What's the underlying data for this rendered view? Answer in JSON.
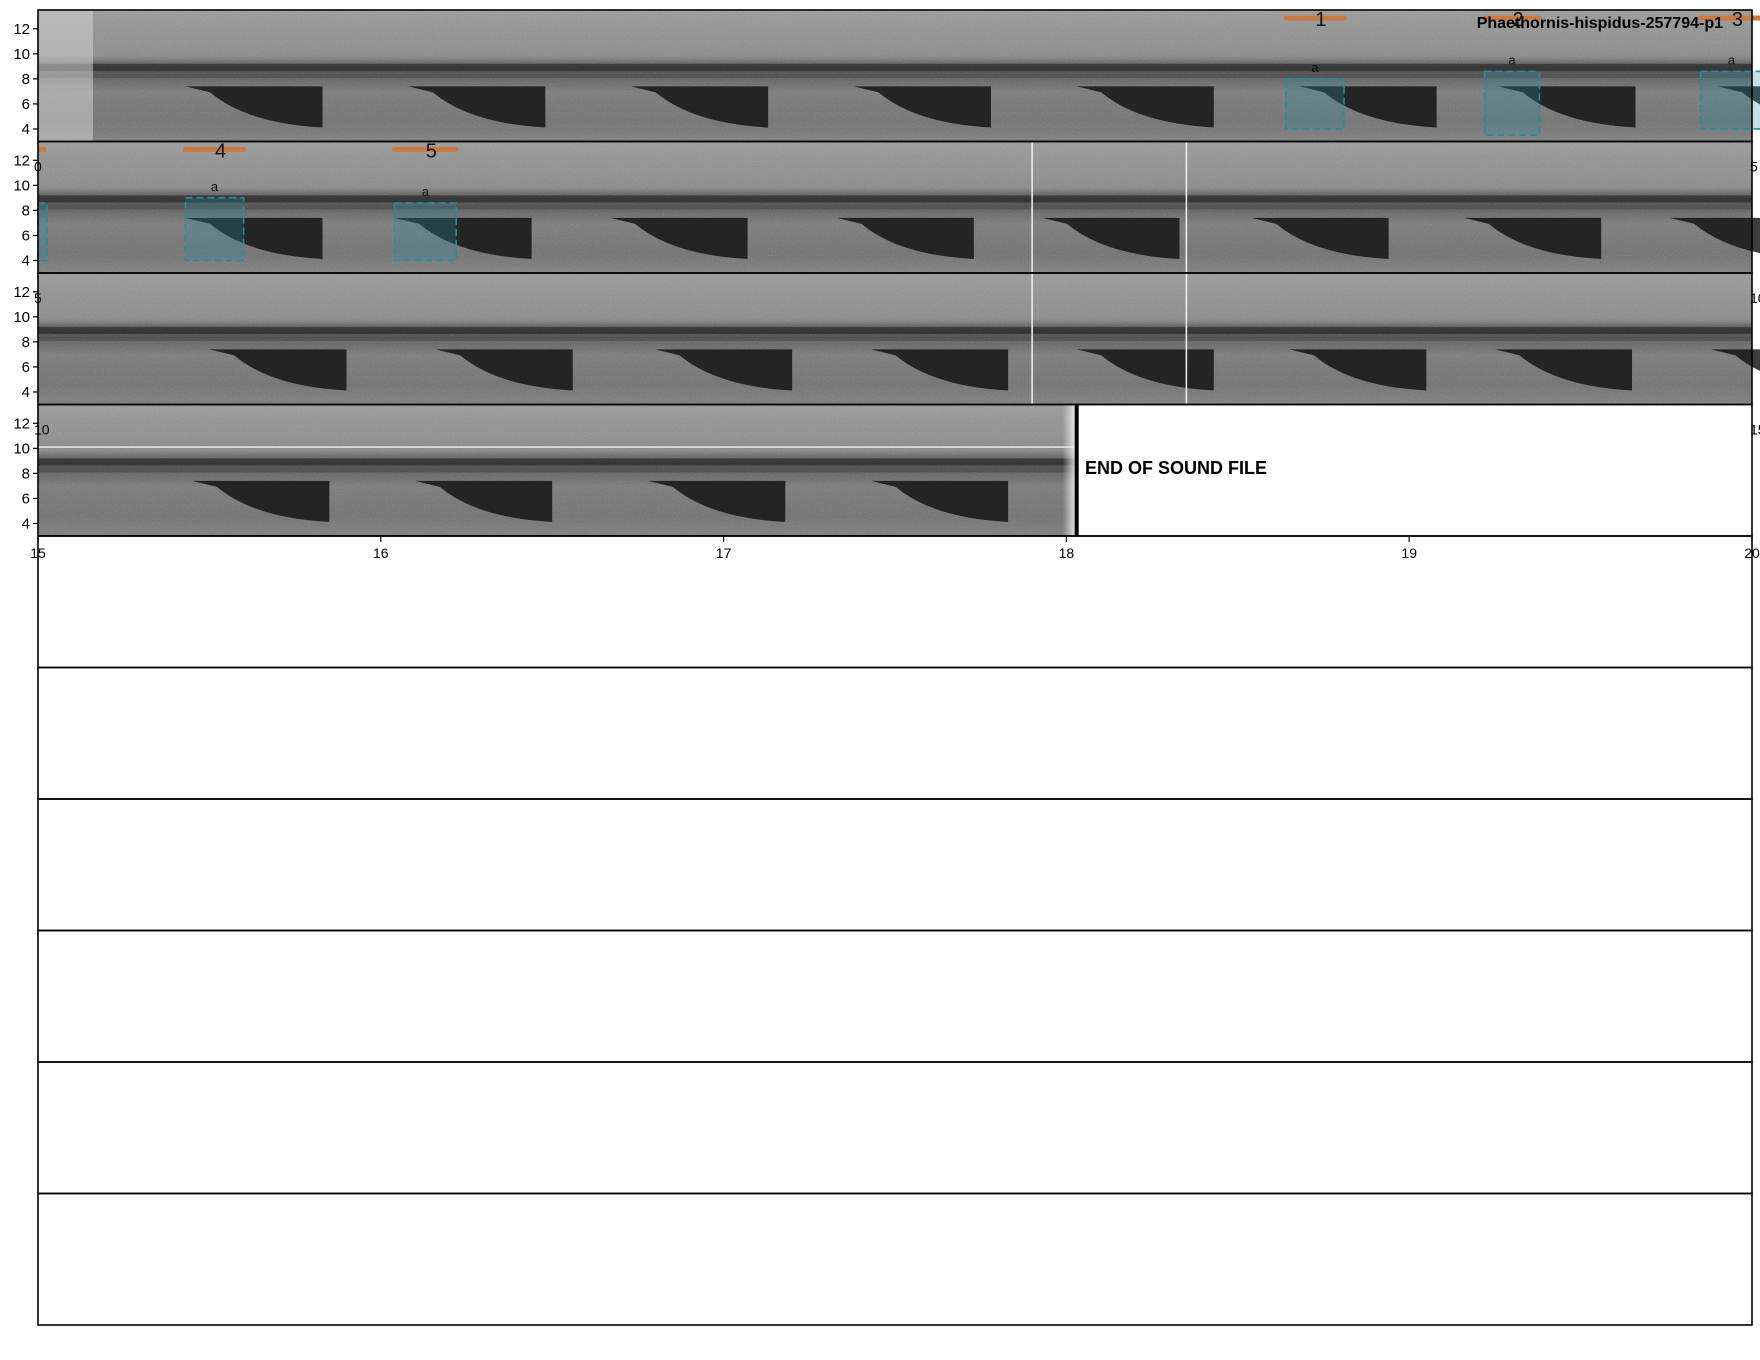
{
  "chart_data": {
    "type": "spectrogram",
    "title": "Phaethornis-hispidus-257794-p1",
    "end_label": "END OF SOUND FILE",
    "y_ticks": [
      4,
      6,
      8,
      10,
      12
    ],
    "ylim": [
      3,
      13.5
    ],
    "rows_total": 10,
    "rows_with_audio": 4,
    "seconds_per_row": 5,
    "end_of_file_time": 18.03,
    "bottom_x_ticks": [
      "15",
      "16",
      "17",
      "18",
      "19",
      "20"
    ],
    "row_tick_labels": [
      {
        "row": 1,
        "left": "0",
        "right": "5"
      },
      {
        "row": 2,
        "left": "5",
        "right": "10"
      },
      {
        "row": 3,
        "left": "10",
        "right": "15"
      }
    ],
    "segment_boundaries": [
      7.9,
      8.35,
      12.9,
      13.35
    ],
    "calls": [
      {
        "start": 0.43,
        "end": 0.83,
        "row": 0
      },
      {
        "start": 1.08,
        "end": 1.48,
        "row": 0
      },
      {
        "start": 1.73,
        "end": 2.13,
        "row": 0
      },
      {
        "start": 2.38,
        "end": 2.78,
        "row": 0
      },
      {
        "start": 3.03,
        "end": 3.43,
        "row": 0
      },
      {
        "start": 3.68,
        "end": 4.08,
        "row": 0
      },
      {
        "start": 4.26,
        "end": 4.66,
        "row": 0
      },
      {
        "start": 4.9,
        "end": 5.3,
        "row": 0
      },
      {
        "start": 5.43,
        "end": 5.83,
        "row": 1
      },
      {
        "start": 6.04,
        "end": 6.44,
        "row": 1
      },
      {
        "start": 6.67,
        "end": 7.07,
        "row": 1
      },
      {
        "start": 7.33,
        "end": 7.73,
        "row": 1
      },
      {
        "start": 7.93,
        "end": 8.33,
        "row": 1
      },
      {
        "start": 8.54,
        "end": 8.94,
        "row": 1
      },
      {
        "start": 9.16,
        "end": 9.56,
        "row": 1
      },
      {
        "start": 9.76,
        "end": 10.16,
        "row": 1
      },
      {
        "start": 10.5,
        "end": 10.9,
        "row": 2
      },
      {
        "start": 11.16,
        "end": 11.56,
        "row": 2
      },
      {
        "start": 11.8,
        "end": 12.2,
        "row": 2
      },
      {
        "start": 12.43,
        "end": 12.83,
        "row": 2
      },
      {
        "start": 13.03,
        "end": 13.43,
        "row": 2
      },
      {
        "start": 13.65,
        "end": 14.05,
        "row": 2
      },
      {
        "start": 14.25,
        "end": 14.65,
        "row": 2
      },
      {
        "start": 14.88,
        "end": 15.28,
        "row": 2
      },
      {
        "start": 15.45,
        "end": 15.85,
        "row": 3
      },
      {
        "start": 16.1,
        "end": 16.5,
        "row": 3
      },
      {
        "start": 16.78,
        "end": 17.18,
        "row": 3
      },
      {
        "start": 17.43,
        "end": 17.83,
        "row": 3
      }
    ],
    "annotations": [
      {
        "id": "1",
        "label": "a",
        "start": 3.64,
        "end": 3.81,
        "fmin": 4.0,
        "fmax": 8.0
      },
      {
        "id": "2",
        "label": "a",
        "start": 4.22,
        "end": 4.38,
        "fmin": 3.5,
        "fmax": 8.6
      },
      {
        "id": "3",
        "label": "a",
        "start": 4.85,
        "end": 5.03,
        "fmin": 4.0,
        "fmax": 8.6
      },
      {
        "id": "4",
        "label": "a",
        "start": 5.43,
        "end": 5.6,
        "fmin": 4.0,
        "fmax": 9.0
      },
      {
        "id": "5",
        "label": "a",
        "start": 6.04,
        "end": 6.22,
        "fmin": 4.0,
        "fmax": 8.6
      }
    ],
    "colors": {
      "annotation_box": "#2a8aa0",
      "annotation_bar": "#c87a45",
      "background": "#ffffff",
      "axis": "#000000"
    }
  }
}
